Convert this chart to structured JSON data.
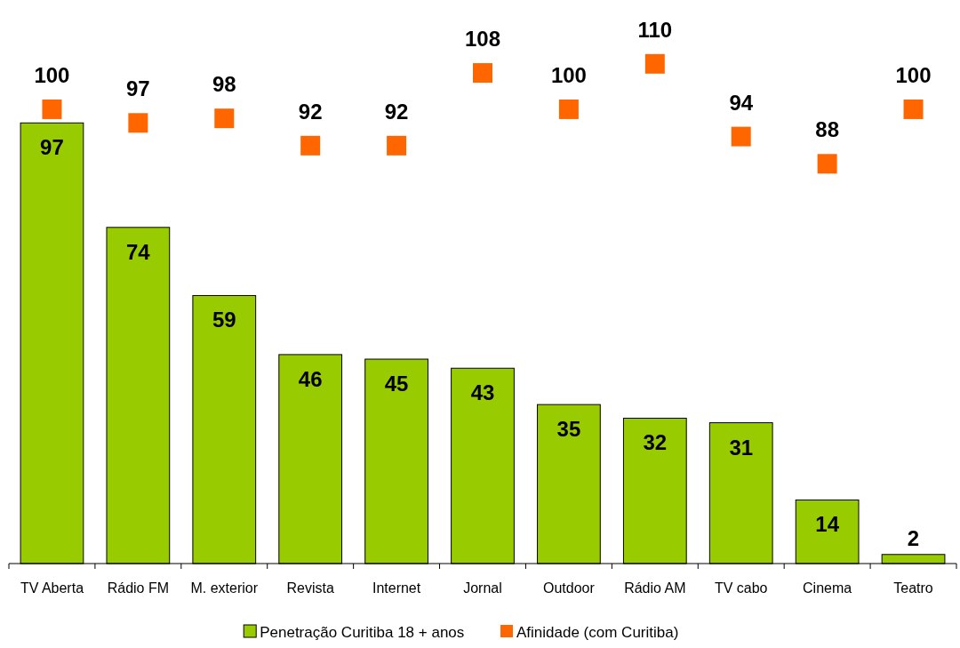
{
  "chart_data": {
    "type": "bar",
    "categories": [
      "TV Aberta",
      "Rádio FM",
      "M. exterior",
      "Revista",
      "Internet",
      "Jornal",
      "Outdoor",
      "Rádio AM",
      "TV cabo",
      "Cinema",
      "Teatro"
    ],
    "series": [
      {
        "name": "Penetração Curitiba 18 + anos",
        "color": "#99cc00",
        "values": [
          97,
          74,
          59,
          46,
          45,
          43,
          35,
          32,
          31,
          14,
          2
        ]
      },
      {
        "name": "Afinidade (com Curitiba)",
        "type": "scatter",
        "color": "#ff6600",
        "values": [
          100,
          97,
          98,
          92,
          92,
          108,
          100,
          110,
          94,
          88,
          100
        ]
      }
    ],
    "data_labels": true,
    "marker": "square",
    "legend": "bottom",
    "grid": false,
    "tick_labels": "x"
  }
}
